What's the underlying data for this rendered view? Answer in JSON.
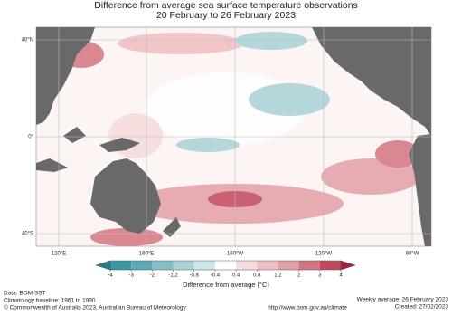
{
  "title": "Difference from average sea surface temperature observations",
  "subtitle": "20 February to 26 February 2023",
  "map": {
    "lat_labels": [
      "40°N",
      "0°",
      "40°S"
    ],
    "lon_labels": [
      "120°E",
      "160°E",
      "160°W",
      "120°W",
      "80°W"
    ]
  },
  "colorbar": {
    "ticks": [
      -4,
      -3,
      -2,
      -1.2,
      -0.8,
      -0.4,
      0.4,
      0.8,
      1.2,
      2,
      3,
      4
    ],
    "colors": [
      "#1f7f8e",
      "#3a97a3",
      "#5eaab4",
      "#86c0c7",
      "#a9d3d8",
      "#cde6e9",
      "#ffffff",
      "#f6dcdc",
      "#eebfc2",
      "#e2a0a6",
      "#d37580",
      "#c0485c",
      "#a41d3e"
    ],
    "label": "Difference from average (°C)"
  },
  "footer": {
    "data": "Data: BOM SST",
    "baseline": "Climatology baseline: 1961 to 1990",
    "copyright": "© Commonwealth of Australia 2023, Australian Bureau of Meteorology",
    "url": "http://www.bom.gov.au/climate",
    "weekly": "Weekly average: 26 February 2023",
    "created": "Created: 27/02/2023"
  }
}
